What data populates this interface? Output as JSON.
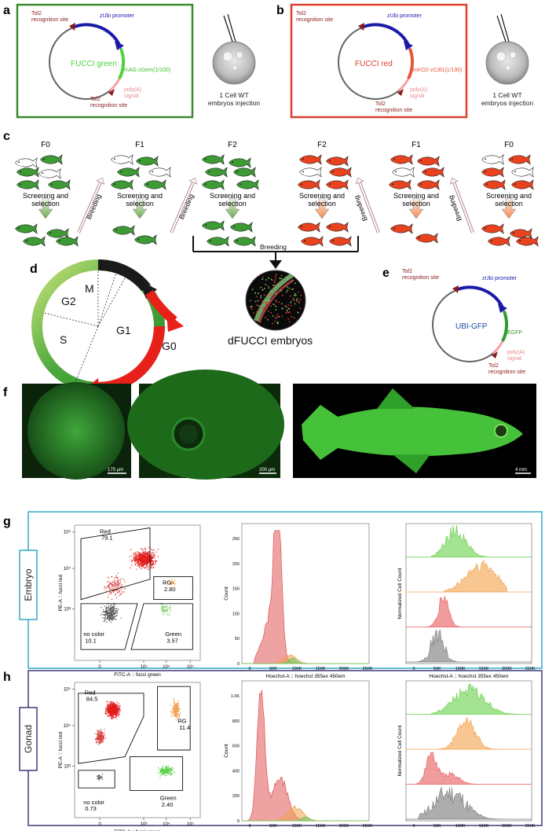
{
  "panels": {
    "a": {
      "letter": "a",
      "plasmid_name": "FUCCI green",
      "tol2_top": "Tol2\nrecognition site",
      "promoter": "zUbi promoter",
      "gene": "mAG-zGem(1/100)",
      "polya": "poly(A)\nsignal",
      "tol2_bottom": "Tol2\nrecognition site",
      "injection": "1 Cell WT\nembryos injection"
    },
    "b": {
      "letter": "b",
      "plasmid_name": "FUCCI red",
      "tol2_top": "Tol2\nrecognition site",
      "promoter": "zUbi promoter",
      "gene": "mKO2-zCdt1(1/190)",
      "polya": "poly(A)\nsignal",
      "tol2_bottom": "Tol2\nrecognition site",
      "injection": "1 Cell WT\nembryos injection"
    },
    "c": {
      "letter": "c",
      "generations_green": [
        "F0",
        "F1",
        "F2"
      ],
      "generations_red": [
        "F2",
        "F1",
        "F0"
      ],
      "screening": "Screening and\nselection",
      "breeding": "Breeding",
      "breeding_center": "Breeding"
    },
    "d": {
      "letter": "d",
      "phases": [
        "M",
        "G2",
        "S",
        "G1",
        "G0"
      ],
      "embryo_label": "dFUCCI embryos"
    },
    "e": {
      "letter": "e",
      "plasmid_name": "UBI-GFP",
      "tol2_top": "Tol2\nrecognition site",
      "promoter": "zUbi promoter",
      "gene": "EGFP",
      "polya": "poly(A)\nsignal",
      "tol2_bottom": "Tol2\nrecognition site"
    },
    "f": {
      "letter": "f",
      "scalebars": [
        "175 µm",
        "200 µm",
        "4 mm"
      ]
    },
    "g": {
      "letter": "g",
      "row_label": "Embryo",
      "gates": [
        {
          "name": "Red",
          "value": "79.1"
        },
        {
          "name": "RG",
          "value": "2.80"
        },
        {
          "name": "no color",
          "value": "10.1"
        },
        {
          "name": "Green",
          "value": "3.57"
        }
      ],
      "scatter_ylabel": "PE-A :: fucci red",
      "scatter_xlabel": "FITC-A :: fucci green",
      "hist_ylabel": "Count",
      "hist_xlabel": "Hoechst-A :: hoechst 355ex 450em",
      "hist_yticks": [
        "0",
        "50",
        "100",
        "150",
        "200",
        "250"
      ],
      "overlay_ylabel": "Normalized Cell Count",
      "overlay_xlabel": "Hoechst-A :: hoechst 355ex 450em"
    },
    "h": {
      "letter": "h",
      "row_label": "Gonad",
      "gates": [
        {
          "name": "Red",
          "value": "84.5"
        },
        {
          "name": "RG",
          "value": "11.4"
        },
        {
          "name": "no color",
          "value": "0.73"
        },
        {
          "name": "Green",
          "value": "2.40"
        }
      ],
      "scatter_ylabel": "PE-A :: fucci red",
      "scatter_xlabel": "FITC-A :: fucci green",
      "hist_ylabel": "Count",
      "hist_xlabel": "Hoechst-A :: hoechst 355ex 450em",
      "hist_yticks": [
        "0",
        "200",
        "400",
        "600",
        "800",
        "1.0K"
      ],
      "overlay_ylabel": "Normalized Cell Count",
      "overlay_xlabel": "Hoechst-A :: hoechst 355ex 450em"
    },
    "hist_xticks": [
      "0",
      "50K",
      "100K",
      "150K",
      "200K",
      "250K"
    ],
    "scatter_xticks": [
      "0",
      "10³",
      "10⁴",
      "10⁵"
    ],
    "scatter_yticks": [
      "10³",
      "10⁴",
      "10⁵"
    ]
  }
}
